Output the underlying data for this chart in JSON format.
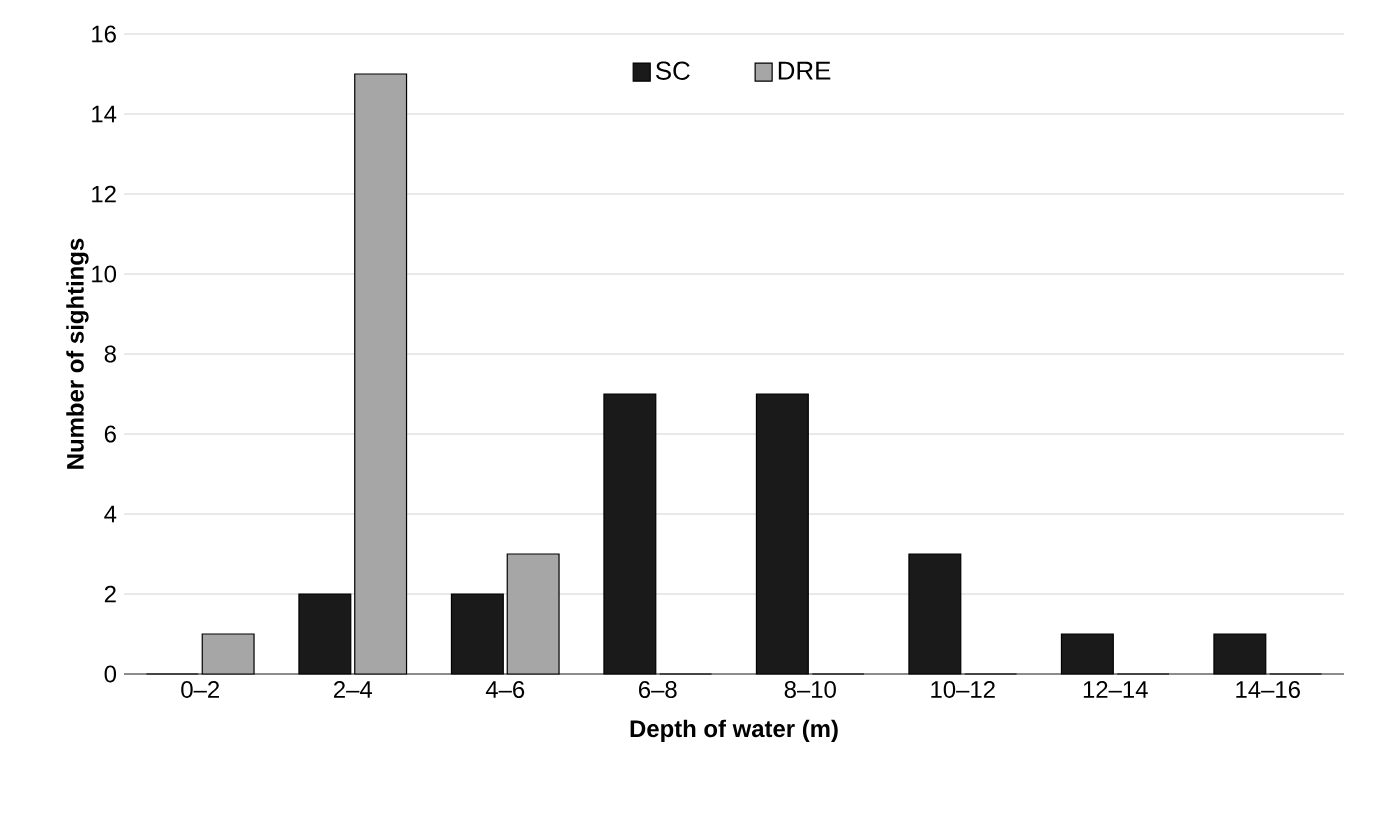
{
  "chart_data": {
    "type": "bar",
    "xlabel": "Depth of water (m)",
    "ylabel": "Number of sightings",
    "categories": [
      "0–2",
      "2–4",
      "4–6",
      "6–8",
      "8–10",
      "10–12",
      "12–14",
      "14–16"
    ],
    "series": [
      {
        "name": "SC",
        "color": "#1a1a1a",
        "values": [
          0,
          2,
          2,
          7,
          7,
          3,
          1,
          1
        ]
      },
      {
        "name": "DRE",
        "color": "#a6a6a6",
        "values": [
          1,
          15,
          3,
          0,
          0,
          0,
          0,
          0
        ]
      }
    ],
    "ylim": [
      0,
      16
    ],
    "yticks": [
      0,
      2,
      4,
      6,
      8,
      10,
      12,
      14,
      16
    ],
    "grid": "y",
    "legend": "top"
  }
}
